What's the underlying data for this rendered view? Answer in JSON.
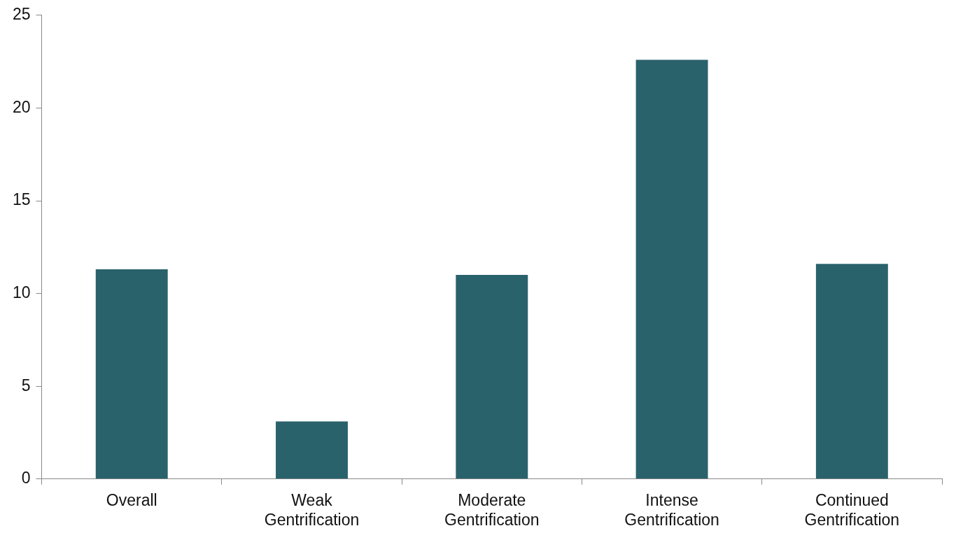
{
  "chart_data": {
    "type": "bar",
    "categories": [
      "Overall",
      "Weak Gentrification",
      "Moderate Gentrification",
      "Intense Gentrification",
      "Continued Gentrification"
    ],
    "values": [
      11.3,
      3.1,
      11.0,
      22.6,
      11.6
    ],
    "color": "#2a626c",
    "ylim": [
      0,
      25
    ],
    "yticks": [
      0,
      5,
      10,
      15,
      20,
      25
    ],
    "grid": false,
    "legend": false
  }
}
